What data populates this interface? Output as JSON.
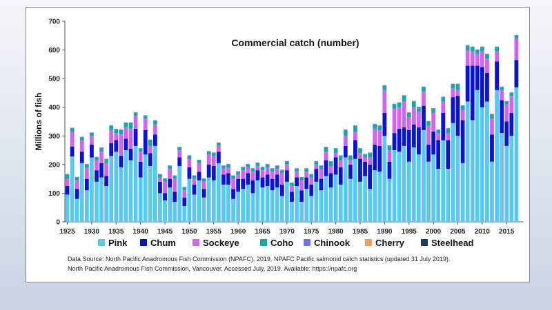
{
  "chart_data": {
    "type": "bar",
    "stacked": true,
    "title": "Commercial catch (number)",
    "ylabel": "Millions of fish",
    "xlabel": "",
    "ylim": [
      0,
      700
    ],
    "yticks": [
      0,
      100,
      200,
      300,
      400,
      500,
      600,
      700
    ],
    "x_start": 1925,
    "x_end": 2018,
    "xticks": [
      1925,
      1930,
      1935,
      1940,
      1945,
      1950,
      1955,
      1960,
      1965,
      1970,
      1975,
      1980,
      1985,
      1990,
      1995,
      2000,
      2005,
      2010,
      2015
    ],
    "legend_position": "bottom",
    "grid": false,
    "series": [
      {
        "name": "Pink",
        "color": "#5bc8ec",
        "values": [
          95,
          228,
          80,
          205,
          110,
          225,
          140,
          155,
          125,
          230,
          245,
          190,
          250,
          215,
          265,
          155,
          235,
          195,
          265,
          100,
          75,
          120,
          70,
          195,
          55,
          150,
          95,
          145,
          85,
          155,
          145,
          205,
          130,
          130,
          80,
          105,
          115,
          130,
          100,
          145,
          120,
          125,
          110,
          120,
          90,
          140,
          70,
          125,
          70,
          115,
          90,
          140,
          110,
          160,
          120,
          165,
          130,
          225,
          150,
          220,
          140,
          160,
          115,
          180,
          175,
          300,
          150,
          250,
          245,
          265,
          210,
          260,
          235,
          320,
          210,
          235,
          185,
          285,
          185,
          345,
          300,
          205,
          420,
          355,
          460,
          400,
          420,
          210,
          460,
          310,
          265,
          300,
          470
        ]
      },
      {
        "name": "Chum",
        "color": "#0a14c8",
        "values": [
          30,
          35,
          35,
          40,
          40,
          45,
          40,
          50,
          35,
          45,
          40,
          40,
          40,
          40,
          60,
          55,
          85,
          45,
          40,
          40,
          25,
          30,
          35,
          30,
          30,
          40,
          35,
          30,
          30,
          45,
          50,
          40,
          35,
          40,
          35,
          45,
          35,
          40,
          45,
          35,
          35,
          40,
          40,
          45,
          40,
          40,
          35,
          30,
          40,
          40,
          40,
          45,
          40,
          55,
          50,
          60,
          60,
          40,
          50,
          65,
          80,
          50,
          85,
          90,
          90,
          80,
          60,
          60,
          80,
          65,
          110,
          80,
          95,
          85,
          60,
          80,
          100,
          95,
          100,
          90,
          140,
          150,
          125,
          190,
          85,
          140,
          100,
          95,
          100,
          115,
          85,
          80,
          95
        ]
      },
      {
        "name": "Sockeye",
        "color": "#d066ec",
        "values": [
          25,
          50,
          30,
          40,
          40,
          30,
          35,
          40,
          45,
          45,
          25,
          75,
          40,
          70,
          45,
          35,
          40,
          25,
          35,
          15,
          40,
          35,
          45,
          25,
          25,
          30,
          20,
          30,
          25,
          35,
          35,
          20,
          20,
          20,
          35,
          15,
          30,
          20,
          30,
          15,
          25,
          25,
          25,
          20,
          40,
          20,
          20,
          20,
          35,
          20,
          25,
          15,
          35,
          30,
          25,
          15,
          25,
          35,
          15,
          30,
          20,
          15,
          25,
          55,
          55,
          80,
          40,
          85,
          75,
          90,
          45,
          60,
          55,
          50,
          65,
          65,
          25,
          40,
          25,
          30,
          20,
          35,
          55,
          50,
          40,
          55,
          50,
          55,
          35,
          35,
          60,
          60,
          75
        ]
      },
      {
        "name": "Coho",
        "color": "#18a8a0",
        "values": [
          15,
          13,
          10,
          10,
          10,
          10,
          10,
          13,
          13,
          15,
          13,
          15,
          15,
          20,
          10,
          10,
          10,
          20,
          13,
          10,
          10,
          10,
          10,
          10,
          10,
          10,
          10,
          10,
          10,
          10,
          10,
          10,
          10,
          10,
          10,
          10,
          10,
          10,
          10,
          10,
          10,
          10,
          10,
          10,
          10,
          10,
          10,
          10,
          10,
          10,
          10,
          10,
          10,
          15,
          15,
          15,
          15,
          20,
          15,
          20,
          15,
          10,
          15,
          15,
          15,
          15,
          15,
          15,
          15,
          20,
          15,
          20,
          15,
          15,
          15,
          15,
          10,
          15,
          15,
          15,
          20,
          15,
          15,
          15,
          15,
          15,
          15,
          15,
          15,
          10,
          10,
          10,
          10
        ]
      },
      {
        "name": "Chinook",
        "color": "#7070e8",
        "values": [
          2,
          2,
          2,
          2,
          2,
          2,
          2,
          2,
          2,
          2,
          2,
          2,
          2,
          2,
          2,
          2,
          2,
          2,
          2,
          2,
          2,
          2,
          2,
          2,
          2,
          2,
          2,
          2,
          2,
          2,
          2,
          2,
          2,
          2,
          2,
          2,
          2,
          2,
          2,
          2,
          2,
          2,
          2,
          2,
          2,
          2,
          2,
          2,
          2,
          2,
          2,
          2,
          2,
          2,
          2,
          2,
          2,
          2,
          2,
          2,
          2,
          2,
          2,
          2,
          2,
          2,
          2,
          2,
          2,
          2,
          2,
          2,
          2,
          2,
          2,
          2,
          2,
          2,
          2,
          2,
          2,
          2,
          2,
          2,
          2,
          2,
          2,
          2,
          2,
          2,
          2,
          2,
          2
        ]
      },
      {
        "name": "Cherry",
        "color": "#f0a060",
        "values": [
          0,
          0,
          0,
          0,
          0,
          0,
          0,
          0,
          0,
          0,
          0,
          0,
          0,
          0,
          0,
          0,
          0,
          0,
          0,
          0,
          0,
          0,
          0,
          0,
          0,
          0,
          0,
          0,
          0,
          0,
          0,
          0,
          0,
          0,
          0,
          0,
          0,
          0,
          0,
          0,
          0,
          0,
          0,
          0,
          0,
          0,
          0,
          0,
          0,
          0,
          0,
          0,
          0,
          0,
          0,
          0,
          0,
          0,
          0,
          0,
          0,
          0,
          0,
          0,
          0,
          0,
          0,
          0,
          0,
          0,
          0,
          0,
          0,
          0,
          0,
          0,
          0,
          0,
          0,
          0,
          0,
          0,
          0,
          0,
          0,
          0,
          0,
          0,
          0,
          0,
          0,
          0,
          0
        ]
      },
      {
        "name": "Steelhead",
        "color": "#203a60",
        "values": [
          0,
          0,
          0,
          0,
          0,
          0,
          0,
          0,
          0,
          0,
          0,
          0,
          0,
          0,
          0,
          0,
          0,
          0,
          0,
          0,
          0,
          0,
          0,
          0,
          0,
          0,
          0,
          0,
          0,
          0,
          0,
          0,
          0,
          0,
          0,
          0,
          0,
          0,
          0,
          0,
          0,
          0,
          0,
          0,
          0,
          0,
          0,
          0,
          0,
          0,
          0,
          0,
          0,
          0,
          0,
          0,
          0,
          0,
          0,
          0,
          0,
          0,
          0,
          0,
          0,
          0,
          0,
          0,
          0,
          0,
          0,
          0,
          0,
          0,
          0,
          0,
          0,
          0,
          0,
          0,
          0,
          0,
          0,
          0,
          0,
          0,
          0,
          0,
          0,
          0,
          0,
          0,
          0
        ]
      }
    ]
  },
  "source": {
    "line1": "Data Source:  North Pacific Anadromous Fish Commission (NPAFC). 2019. NPAFC Pacific salmonid catch statistics (updated 31 July 2019).",
    "line2": "North Pacific Anadromous Fish Commission, Vancouver. Accessed July, 2019. Available: https://npafc.org"
  }
}
